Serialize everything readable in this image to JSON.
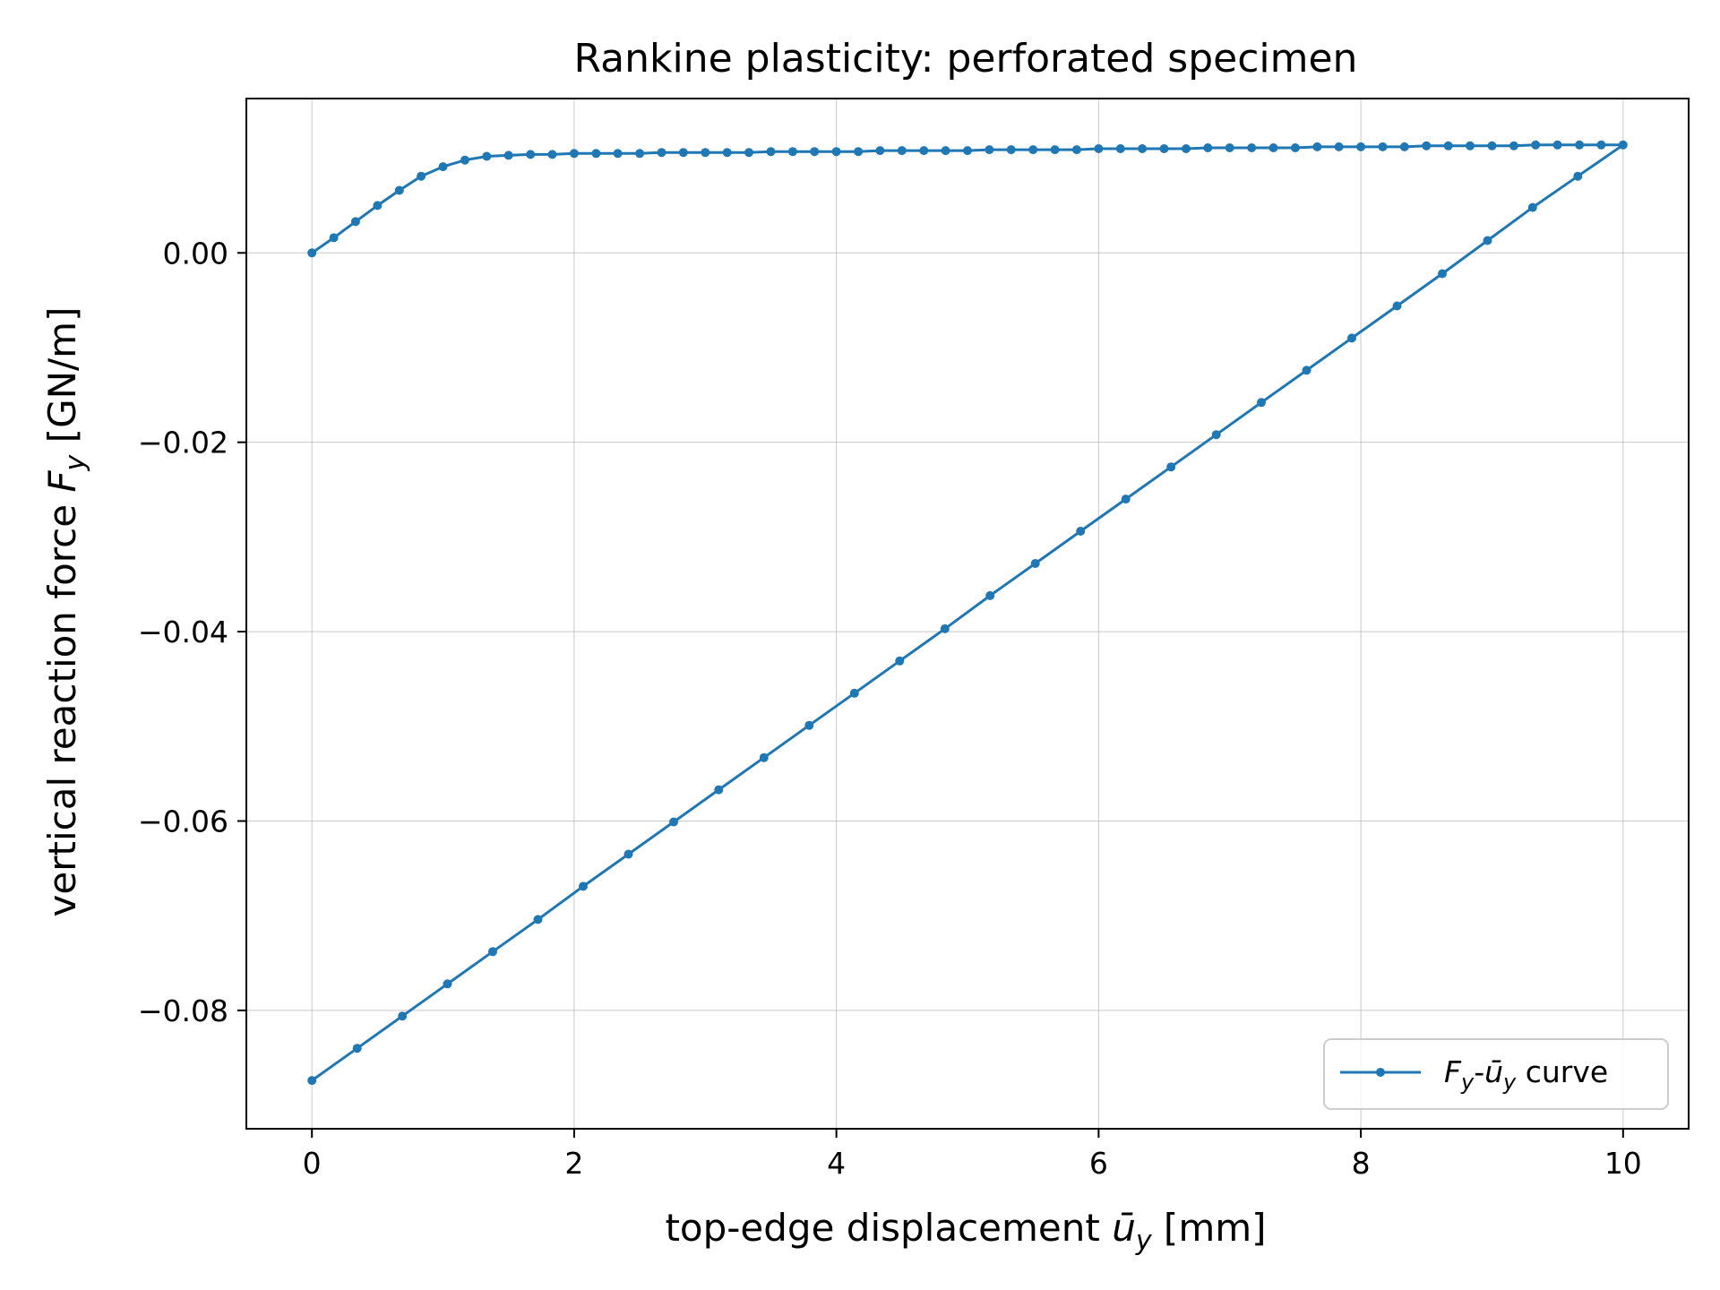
{
  "chart_data": {
    "type": "line",
    "title": "Rankine plasticity: perforated specimen",
    "xlabel": "top-edge displacement ū_y [mm]",
    "ylabel": "vertical reaction force F_y [GN/m]",
    "xlim": [
      -0.5,
      10.5
    ],
    "ylim": [
      -0.0925,
      0.0163
    ],
    "xticks": [
      0,
      2,
      4,
      6,
      8,
      10
    ],
    "xtick_labels": [
      "0",
      "2",
      "4",
      "6",
      "8",
      "10"
    ],
    "yticks": [
      0.0,
      -0.02,
      -0.04,
      -0.06,
      -0.08
    ],
    "ytick_labels": [
      "0.00",
      "−0.02",
      "−0.04",
      "−0.06",
      "−0.08"
    ],
    "grid": true,
    "legend_position": "lower-right",
    "color": "#1f77b4",
    "series": [
      {
        "name": "F_y-ū_y curve",
        "x": [
          0,
          0.167,
          0.333,
          0.5,
          0.667,
          0.833,
          1.0,
          1.167,
          1.333,
          1.5,
          1.667,
          1.833,
          2.0,
          2.167,
          2.333,
          2.5,
          2.667,
          2.833,
          3.0,
          3.167,
          3.333,
          3.5,
          3.667,
          3.833,
          4.0,
          4.167,
          4.333,
          4.5,
          4.667,
          4.833,
          5.0,
          5.167,
          5.333,
          5.5,
          5.667,
          5.833,
          6.0,
          6.167,
          6.333,
          6.5,
          6.667,
          6.833,
          7.0,
          7.167,
          7.333,
          7.5,
          7.667,
          7.833,
          8.0,
          8.167,
          8.333,
          8.5,
          8.667,
          8.833,
          9.0,
          9.167,
          9.333,
          9.5,
          9.667,
          9.833,
          10.0,
          9.655,
          9.31,
          8.966,
          8.621,
          8.276,
          7.931,
          7.586,
          7.241,
          6.897,
          6.552,
          6.207,
          5.862,
          5.517,
          5.172,
          4.828,
          4.483,
          4.138,
          3.793,
          3.448,
          3.103,
          2.759,
          2.414,
          2.069,
          1.724,
          1.379,
          1.034,
          0.69,
          0.345,
          0.0
        ],
        "y": [
          0.0,
          0.0016,
          0.0033,
          0.005,
          0.0066,
          0.0081,
          0.0091,
          0.0098,
          0.0102,
          0.0103,
          0.0104,
          0.0104,
          0.0105,
          0.0105,
          0.0105,
          0.0105,
          0.0106,
          0.0106,
          0.0106,
          0.0106,
          0.0106,
          0.0107,
          0.0107,
          0.0107,
          0.0107,
          0.0107,
          0.0108,
          0.0108,
          0.0108,
          0.0108,
          0.0108,
          0.0109,
          0.0109,
          0.0109,
          0.0109,
          0.0109,
          0.011,
          0.011,
          0.011,
          0.011,
          0.011,
          0.0111,
          0.0111,
          0.0111,
          0.0111,
          0.0111,
          0.0112,
          0.0112,
          0.0112,
          0.0112,
          0.0112,
          0.0113,
          0.0113,
          0.0113,
          0.0113,
          0.0113,
          0.0114,
          0.0114,
          0.0114,
          0.0114,
          0.0114,
          0.0081,
          0.0048,
          0.0013,
          -0.0022,
          -0.0056,
          -0.009,
          -0.0124,
          -0.0158,
          -0.0192,
          -0.0226,
          -0.026,
          -0.0294,
          -0.0328,
          -0.0362,
          -0.0397,
          -0.0431,
          -0.0465,
          -0.0499,
          -0.0533,
          -0.0567,
          -0.0601,
          -0.0635,
          -0.0669,
          -0.0704,
          -0.0738,
          -0.0772,
          -0.0806,
          -0.084,
          -0.0874
        ]
      }
    ]
  }
}
